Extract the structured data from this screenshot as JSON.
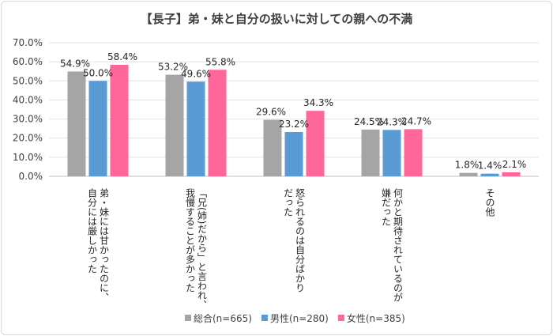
{
  "chart_data": {
    "type": "bar",
    "title": "【長子】弟・妹と自分の扱いに対しての親への不満",
    "categories": [
      [
        "弟・妹には甘かったのに、",
        "自分には厳しかった"
      ],
      [
        "「兄(姉)だから」と言われ、",
        "我慢することが多かった"
      ],
      [
        "怒られるのは自分ばかり",
        "だった"
      ],
      [
        "何かと期待されているのが",
        "嫌だった"
      ],
      [
        "その他"
      ]
    ],
    "series": [
      {
        "name": "総合(n=665)",
        "color": "#a5a5a5",
        "values": [
          54.9,
          53.2,
          29.6,
          24.5,
          1.8
        ],
        "labels": [
          "54.9%",
          "53.2%",
          "29.6%",
          "24.5%",
          "1.8%"
        ]
      },
      {
        "name": "男性(n=280)",
        "color": "#5b9bd5",
        "values": [
          50.0,
          49.6,
          23.2,
          24.3,
          1.4
        ],
        "labels": [
          "50.0%",
          "49.6%",
          "23.2%",
          "24.3%",
          "1.4%"
        ]
      },
      {
        "name": "女性(n=385)",
        "color": "#ff6699",
        "values": [
          58.4,
          55.8,
          34.3,
          24.7,
          2.1
        ],
        "labels": [
          "58.4%",
          "55.8%",
          "34.3%",
          "24.7%",
          "2.1%"
        ]
      }
    ],
    "ylim": [
      0,
      70
    ],
    "yticks": [
      0,
      10,
      20,
      30,
      40,
      50,
      60,
      70
    ],
    "ytick_labels": [
      "0.0%",
      "10.0%",
      "20.0%",
      "30.0%",
      "40.0%",
      "50.0%",
      "60.0%",
      "70.0%"
    ],
    "grid": true,
    "legend_position": "bottom"
  }
}
